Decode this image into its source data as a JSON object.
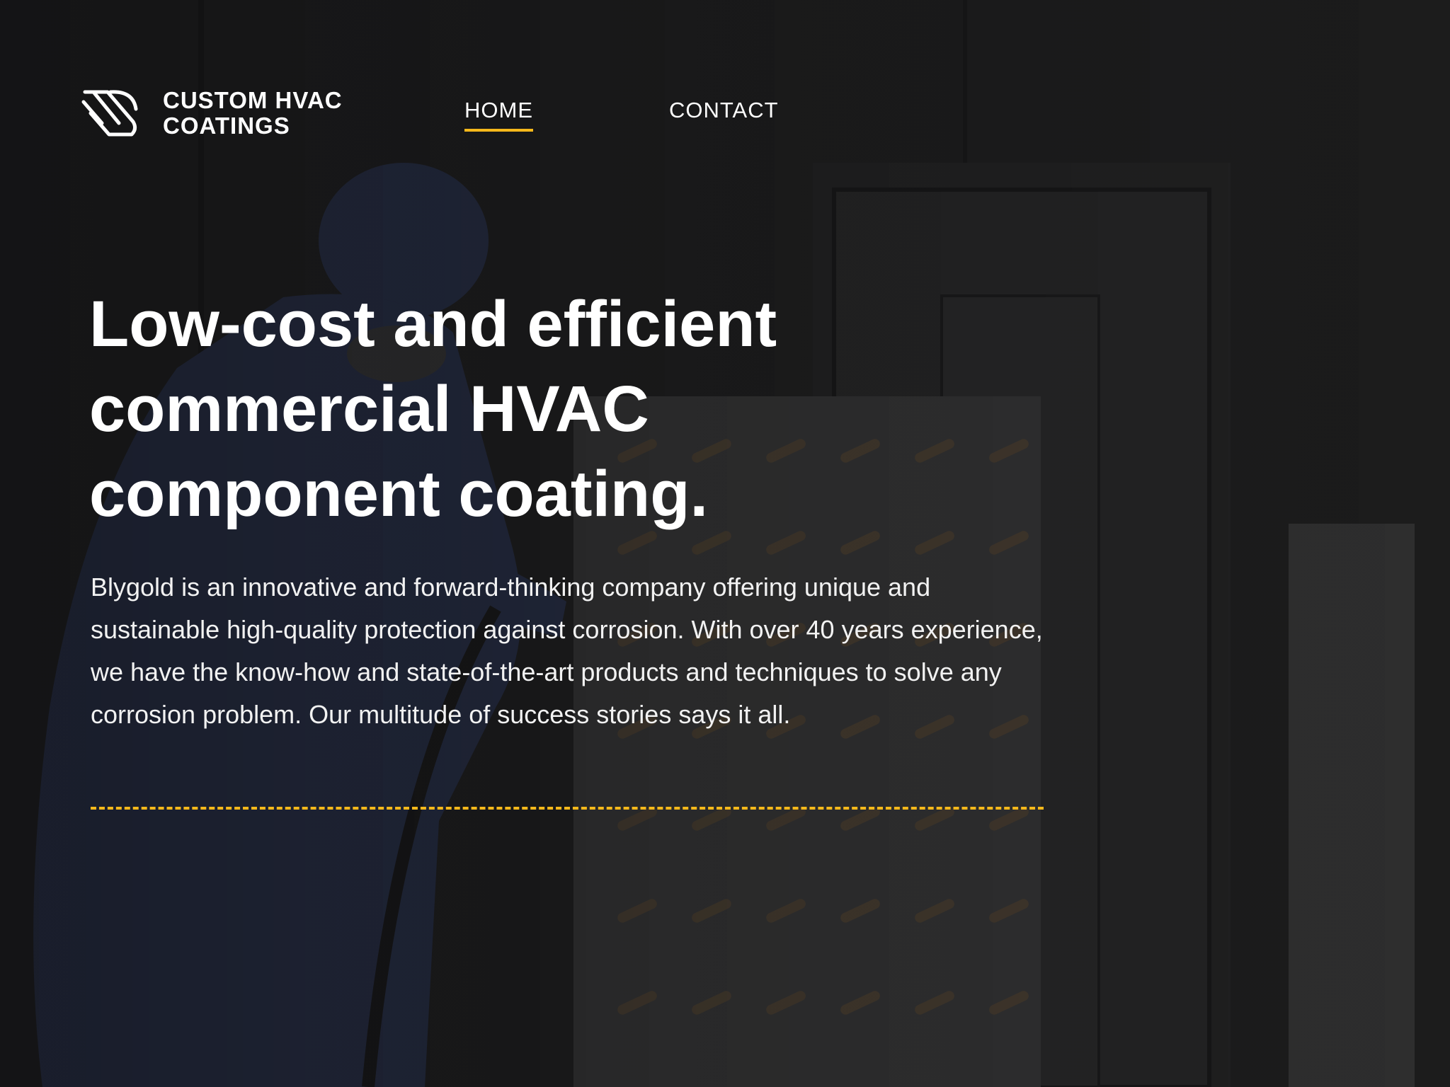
{
  "brand": {
    "line1": "CUSTOM HVAC",
    "line2": "COATINGS",
    "logo_icon": "stripes-swoosh-logo-icon"
  },
  "nav": {
    "items": [
      {
        "label": "HOME",
        "active": true
      },
      {
        "label": "CONTACT",
        "active": false
      }
    ]
  },
  "hero": {
    "title_lines": [
      "Low-cost and efficient",
      "commercial HVAC",
      "component coating."
    ],
    "body": "Blygold is an innovative and forward-thinking company offering unique and sustainable high-quality protection against corrosion. With over 40 years experience, we have the know-how and state-of-the-art products and techniques to solve any corrosion problem. Our multitude of success stories says it all."
  },
  "colors": {
    "accent": "#f5b81b",
    "text": "#ffffff",
    "background": "#1b1b1b"
  }
}
